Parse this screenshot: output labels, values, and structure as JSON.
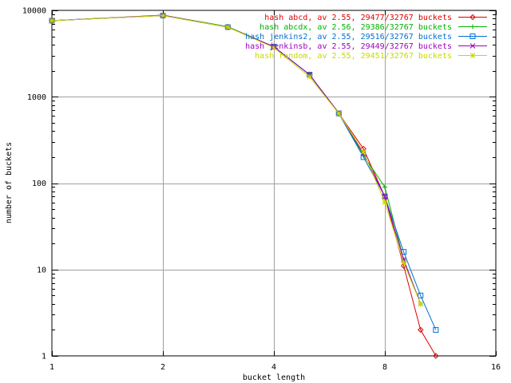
{
  "chart_data": {
    "type": "line",
    "title": "",
    "xlabel": "bucket length",
    "ylabel": "number of buckets",
    "x_scale": "log2",
    "y_scale": "log10",
    "xlim": [
      1,
      16
    ],
    "ylim": [
      1,
      10000
    ],
    "x_ticks": [
      1,
      2,
      4,
      8,
      16
    ],
    "y_ticks": [
      1,
      10,
      100,
      1000,
      10000
    ],
    "x_tick_labels": [
      "1",
      "2",
      "4",
      "8",
      "16"
    ],
    "y_tick_labels": [
      "1",
      "10",
      "100",
      "1000",
      "10000"
    ],
    "grid": true,
    "legend_position": "top-right",
    "series": [
      {
        "name": "hash abcd, av 2.55, 29477/32767 buckets",
        "color": "#e00000",
        "marker": "diamond",
        "x": [
          1,
          2,
          3,
          4,
          5,
          6,
          7,
          8,
          9,
          10,
          11
        ],
        "y": [
          7600,
          8700,
          6400,
          3800,
          1800,
          640,
          250,
          70,
          11,
          2,
          1
        ]
      },
      {
        "name": "hash abcdx, av 2.56, 29386/32767 buckets",
        "color": "#00b000",
        "marker": "plus",
        "x": [
          1,
          2,
          3,
          4,
          5,
          6,
          7,
          8,
          9,
          10
        ],
        "y": [
          7600,
          8800,
          6500,
          3800,
          1800,
          650,
          210,
          90,
          13,
          4
        ]
      },
      {
        "name": "hash jenkins2, av 2.55, 29516/32767 buckets",
        "color": "#0070d0",
        "marker": "square",
        "x": [
          1,
          2,
          3,
          4,
          5,
          6,
          7,
          8,
          9,
          10,
          11
        ],
        "y": [
          7600,
          8700,
          6400,
          3800,
          1800,
          640,
          200,
          70,
          16,
          5,
          2
        ]
      },
      {
        "name": "hash jenkinsb, av 2.55, 29449/32767 buckets",
        "color": "#a000c0",
        "marker": "cross",
        "x": [
          1,
          2,
          3,
          4,
          5,
          6,
          7,
          8,
          9,
          10
        ],
        "y": [
          7600,
          8800,
          6400,
          3800,
          1800,
          650,
          220,
          70,
          13,
          4
        ]
      },
      {
        "name": "hash random, av 2.55, 29451/32767 buckets",
        "color": "#c8d800",
        "marker": "star",
        "x": [
          1,
          2,
          3,
          4,
          5,
          6,
          7,
          8,
          9,
          10
        ],
        "y": [
          7600,
          8700,
          6400,
          3700,
          1700,
          640,
          230,
          60,
          12,
          4
        ]
      }
    ]
  }
}
